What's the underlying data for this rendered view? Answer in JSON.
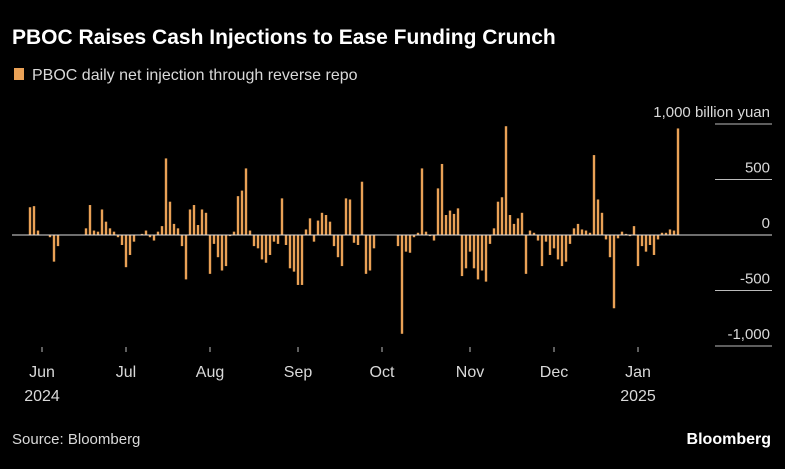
{
  "chart_data": {
    "type": "bar",
    "title": "PBOC Raises Cash Injections to Ease Funding Crunch",
    "series": [
      {
        "name": "PBOC daily net injection through reverse repo",
        "color": "#e9a156",
        "values": [
          250,
          260,
          40,
          0,
          0,
          -20,
          -240,
          -100,
          0,
          0,
          0,
          0,
          0,
          0,
          60,
          270,
          40,
          30,
          230,
          120,
          60,
          30,
          -20,
          -90,
          -290,
          -180,
          -60,
          0,
          10,
          40,
          -20,
          -50,
          30,
          80,
          690,
          300,
          100,
          60,
          -100,
          -400,
          230,
          270,
          90,
          230,
          200,
          -350,
          -80,
          -200,
          -320,
          -280,
          -10,
          30,
          350,
          400,
          600,
          40,
          -100,
          -120,
          -220,
          -250,
          -180,
          -60,
          -80,
          330,
          -90,
          -300,
          -330,
          -450,
          -450,
          50,
          150,
          -60,
          130,
          200,
          180,
          120,
          -100,
          -200,
          -280,
          330,
          320,
          -70,
          -90,
          480,
          -350,
          -320,
          -120,
          0,
          0,
          0,
          0,
          0,
          -100,
          -890,
          -150,
          -160,
          -20,
          20,
          600,
          30,
          -10,
          -50,
          420,
          640,
          180,
          220,
          190,
          240,
          -370,
          -300,
          -150,
          -300,
          -400,
          -320,
          -420,
          -80,
          60,
          300,
          340,
          980,
          180,
          100,
          150,
          200,
          -350,
          40,
          20,
          -50,
          -280,
          -60,
          -180,
          -120,
          -220,
          -280,
          -240,
          -80,
          60,
          100,
          50,
          40,
          20,
          720,
          320,
          200,
          -40,
          -200,
          -660,
          -30,
          30,
          10,
          -10,
          80,
          -280,
          -100,
          -150,
          -90,
          -180,
          -40,
          20,
          20,
          50,
          40,
          960,
          0
        ]
      }
    ],
    "categories": [
      null,
      null,
      null,
      "Jun",
      null,
      null,
      null,
      null,
      null,
      null,
      null,
      null,
      null,
      null,
      null,
      null,
      null,
      null,
      null,
      null,
      null,
      null,
      null,
      null,
      "Jul",
      null,
      null,
      null,
      null,
      null,
      null,
      null,
      null,
      null,
      null,
      null,
      null,
      null,
      null,
      null,
      null,
      null,
      null,
      null,
      null,
      "Aug",
      null,
      null,
      null,
      null,
      null,
      null,
      null,
      null,
      null,
      null,
      null,
      null,
      null,
      null,
      null,
      null,
      null,
      null,
      null,
      null,
      null,
      "Sep",
      null,
      null,
      null,
      null,
      null,
      null,
      null,
      null,
      null,
      null,
      null,
      null,
      null,
      null,
      null,
      null,
      null,
      null,
      null,
      null,
      "Oct",
      null,
      null,
      null,
      null,
      null,
      null,
      null,
      null,
      null,
      null,
      null,
      null,
      null,
      null,
      null,
      null,
      null,
      null,
      null,
      null,
      null,
      "Nov",
      null,
      null,
      null,
      null,
      null,
      null,
      null,
      null,
      null,
      null,
      null,
      null,
      null,
      null,
      null,
      null,
      null,
      null,
      null,
      null,
      "Dec",
      null,
      null,
      null,
      null,
      null,
      null,
      null,
      null,
      null,
      null,
      null,
      null,
      null,
      null,
      null,
      null,
      null,
      null,
      null,
      null,
      "Jan",
      null,
      null,
      null,
      null,
      null,
      null,
      null,
      null,
      null,
      null,
      null
    ],
    "year_labels": [
      {
        "index": 3,
        "label": "2024"
      },
      {
        "index": 152,
        "label": "2025"
      }
    ],
    "ylim": [
      -1000,
      1000
    ],
    "yticks": [
      {
        "value": 1000,
        "label": "1,000 billion yuan"
      },
      500,
      0,
      -500,
      {
        "value": -1000,
        "label": "-1,000"
      }
    ],
    "source": "Source: Bloomberg",
    "brand": "Bloomberg"
  }
}
